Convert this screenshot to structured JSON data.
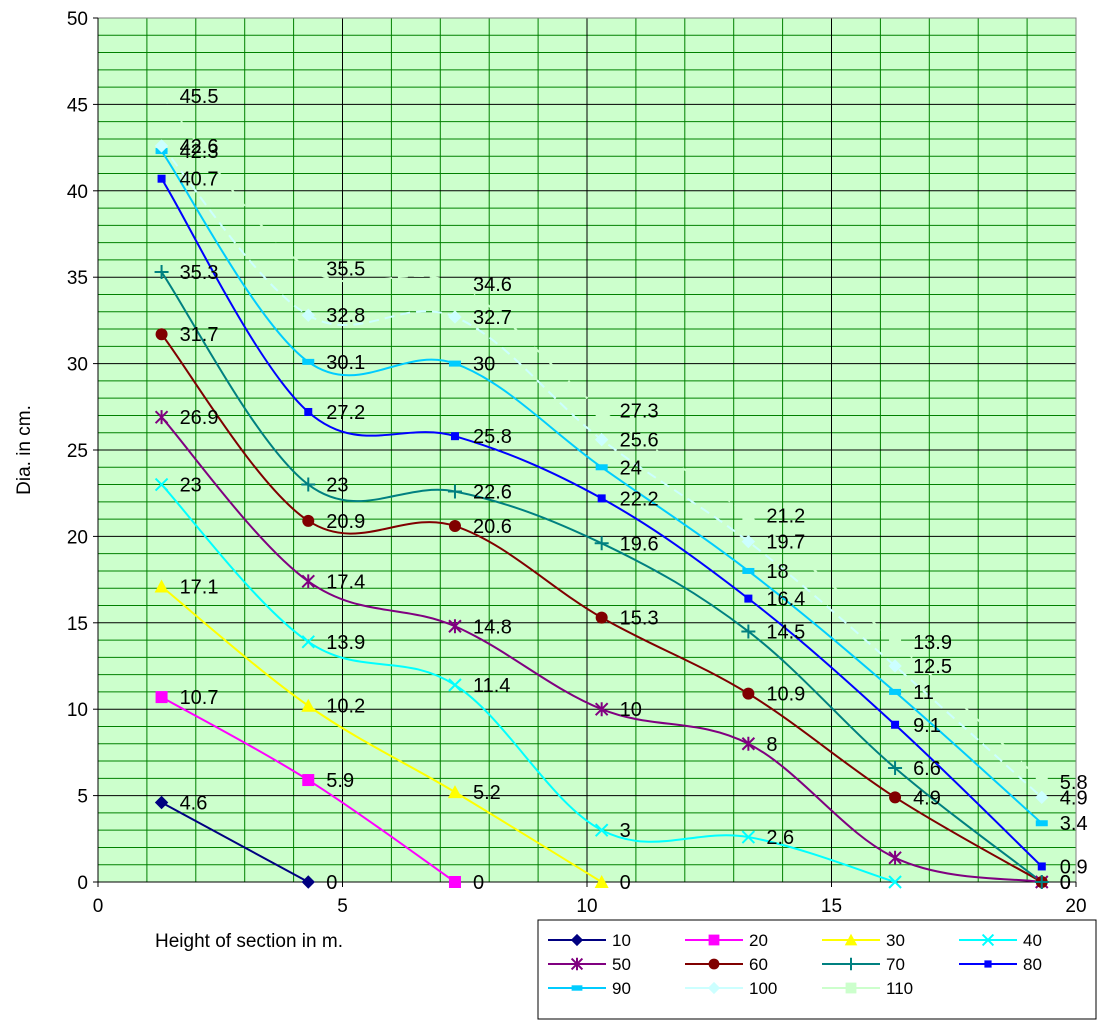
{
  "chart_data": {
    "type": "line",
    "xlabel": "Height of section in m.",
    "ylabel": "Dia.  in cm.",
    "xlim": [
      0,
      20
    ],
    "ylim": [
      0,
      50
    ],
    "x_ticks": [
      0,
      5,
      10,
      15,
      20
    ],
    "y_ticks": [
      0,
      5,
      10,
      15,
      20,
      25,
      30,
      35,
      40,
      45,
      50
    ],
    "grid": true,
    "plot_background": "#ccffcc",
    "gridline_color": "#008000",
    "legend_position": "bottom-right",
    "series": [
      {
        "name": "10",
        "color": "#000080",
        "marker": "diamond",
        "x": [
          1.3,
          4.3
        ],
        "y": [
          4.6,
          0
        ],
        "labels": [
          "4.6",
          "0"
        ]
      },
      {
        "name": "20",
        "color": "#ff00ff",
        "marker": "square",
        "x": [
          1.3,
          4.3,
          7.3
        ],
        "y": [
          10.7,
          5.9,
          0
        ],
        "labels": [
          "10.7",
          "5.9",
          "0"
        ]
      },
      {
        "name": "30",
        "color": "#ffff00",
        "marker": "triangle",
        "x": [
          1.3,
          4.3,
          7.3,
          10.3
        ],
        "y": [
          17.1,
          10.2,
          5.2,
          0
        ],
        "labels": [
          "17.1",
          "10.2",
          "5.2",
          "0"
        ]
      },
      {
        "name": "40",
        "color": "#00ffff",
        "marker": "x",
        "x": [
          1.3,
          4.3,
          7.3,
          10.3,
          13.3,
          16.3
        ],
        "y": [
          23,
          13.9,
          11.4,
          3,
          2.6,
          0
        ],
        "labels": [
          "23",
          "13.9",
          "11.4",
          "3",
          "2.6",
          ""
        ]
      },
      {
        "name": "50",
        "color": "#800080",
        "marker": "star",
        "x": [
          1.3,
          4.3,
          7.3,
          10.3,
          13.3,
          16.3,
          19.3
        ],
        "y": [
          26.9,
          17.4,
          14.8,
          10,
          8,
          1.4,
          0
        ],
        "labels": [
          "26.9",
          "17.4",
          "14.8",
          "10",
          "8",
          "",
          ""
        ]
      },
      {
        "name": "60",
        "color": "#800000",
        "marker": "circle",
        "x": [
          1.3,
          4.3,
          7.3,
          10.3,
          13.3,
          16.3,
          19.3
        ],
        "y": [
          31.7,
          20.9,
          20.6,
          15.3,
          10.9,
          4.9,
          0
        ],
        "labels": [
          "31.7",
          "20.9",
          "20.6",
          "15.3",
          "10.9",
          "4.9",
          "0"
        ]
      },
      {
        "name": "70",
        "color": "#008080",
        "marker": "plus",
        "x": [
          1.3,
          4.3,
          7.3,
          10.3,
          13.3,
          16.3,
          19.3
        ],
        "y": [
          35.3,
          23,
          22.6,
          19.6,
          14.5,
          6.6,
          0
        ],
        "labels": [
          "35.3",
          "23",
          "22.6",
          "19.6",
          "14.5",
          "6.6",
          "0"
        ]
      },
      {
        "name": "80",
        "color": "#0000ff",
        "marker": "smallsquare",
        "x": [
          1.3,
          4.3,
          7.3,
          10.3,
          13.3,
          16.3,
          19.3
        ],
        "y": [
          40.7,
          27.2,
          25.8,
          22.2,
          16.4,
          9.1,
          0.9
        ],
        "labels": [
          "40.7",
          "27.2",
          "25.8",
          "22.2",
          "16.4",
          "9.1",
          "0.9"
        ]
      },
      {
        "name": "90",
        "color": "#00ccff",
        "marker": "dash",
        "x": [
          1.3,
          4.3,
          7.3,
          10.3,
          13.3,
          16.3,
          19.3
        ],
        "y": [
          42.3,
          30.1,
          30,
          24,
          18,
          11,
          3.4
        ],
        "labels": [
          "42.3",
          "30.1",
          "30",
          "24",
          "18",
          "11",
          "3.4"
        ]
      },
      {
        "name": "100",
        "color": "#ccffff",
        "marker": "diamond",
        "x": [
          1.3,
          4.3,
          7.3,
          10.3,
          13.3,
          16.3,
          19.3
        ],
        "y": [
          42.6,
          32.8,
          32.7,
          25.6,
          19.7,
          12.5,
          4.9
        ],
        "labels": [
          "42.6",
          "32.8",
          "32.7",
          "25.6",
          "19.7",
          "12.5",
          "4.9"
        ]
      },
      {
        "name": "110",
        "color": "#ccffcc",
        "marker": "square",
        "x": [
          1.3,
          4.3,
          7.3,
          10.3,
          13.3,
          16.3,
          19.3
        ],
        "y": [
          45.5,
          35.5,
          34.6,
          27.3,
          21.2,
          13.9,
          5.8
        ],
        "labels": [
          "45.5",
          "35.5",
          "34.6",
          "27.3",
          "21.2",
          "13.9",
          "5.8"
        ]
      }
    ]
  }
}
